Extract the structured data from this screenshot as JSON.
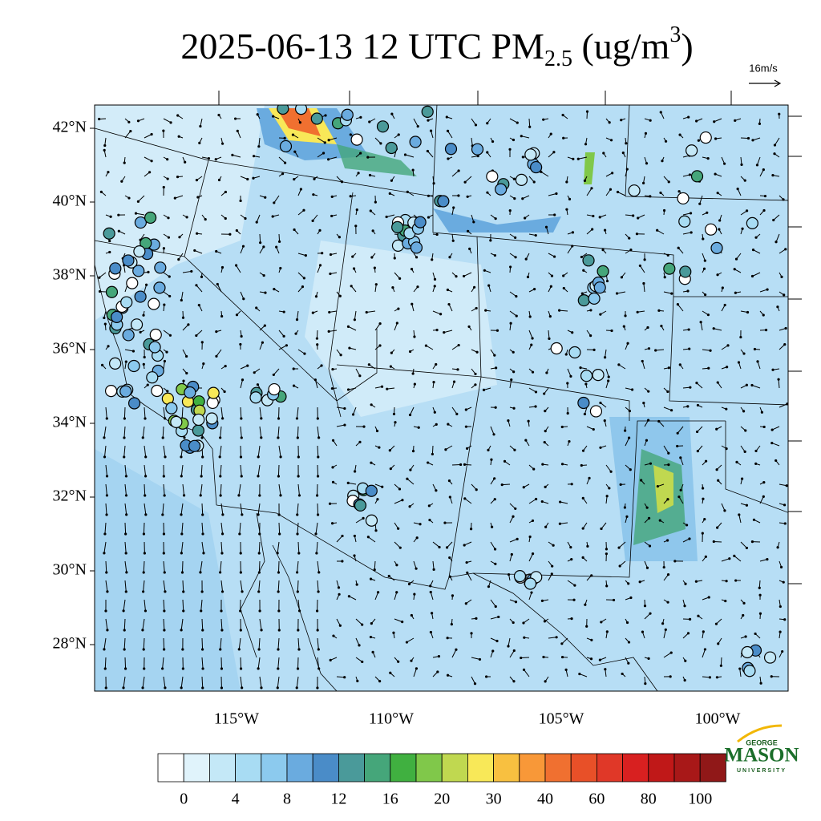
{
  "title": {
    "main": "2025-06-13 12 UTC PM",
    "sub": "2.5",
    "unit_open": " (ug/m",
    "sup": "3",
    "unit_close": ")"
  },
  "wind_reference": "16m/s",
  "latitude_labels": [
    "42°N",
    "40°N",
    "38°N",
    "36°N",
    "34°N",
    "32°N",
    "30°N",
    "28°N"
  ],
  "longitude_labels": [
    "115°W",
    "110°W",
    "105°W",
    "100°W"
  ],
  "colorbar": {
    "colors": [
      "#ffffff",
      "#e0f3fb",
      "#c4e8f7",
      "#a8dcf3",
      "#8ccaee",
      "#6aabdf",
      "#4a8cc8",
      "#4a9a9a",
      "#45a67a",
      "#40b040",
      "#80c84a",
      "#c0d850",
      "#f8e858",
      "#f8c040",
      "#f89838",
      "#f07030",
      "#e85028",
      "#e03828",
      "#d82020",
      "#c01818",
      "#a81818",
      "#901818"
    ],
    "labels": [
      0,
      4,
      8,
      12,
      16,
      20,
      30,
      40,
      60,
      80,
      100
    ]
  },
  "logo": {
    "top": "GEORGE",
    "name": "MASON",
    "bottom": "UNIVERSITY"
  }
}
